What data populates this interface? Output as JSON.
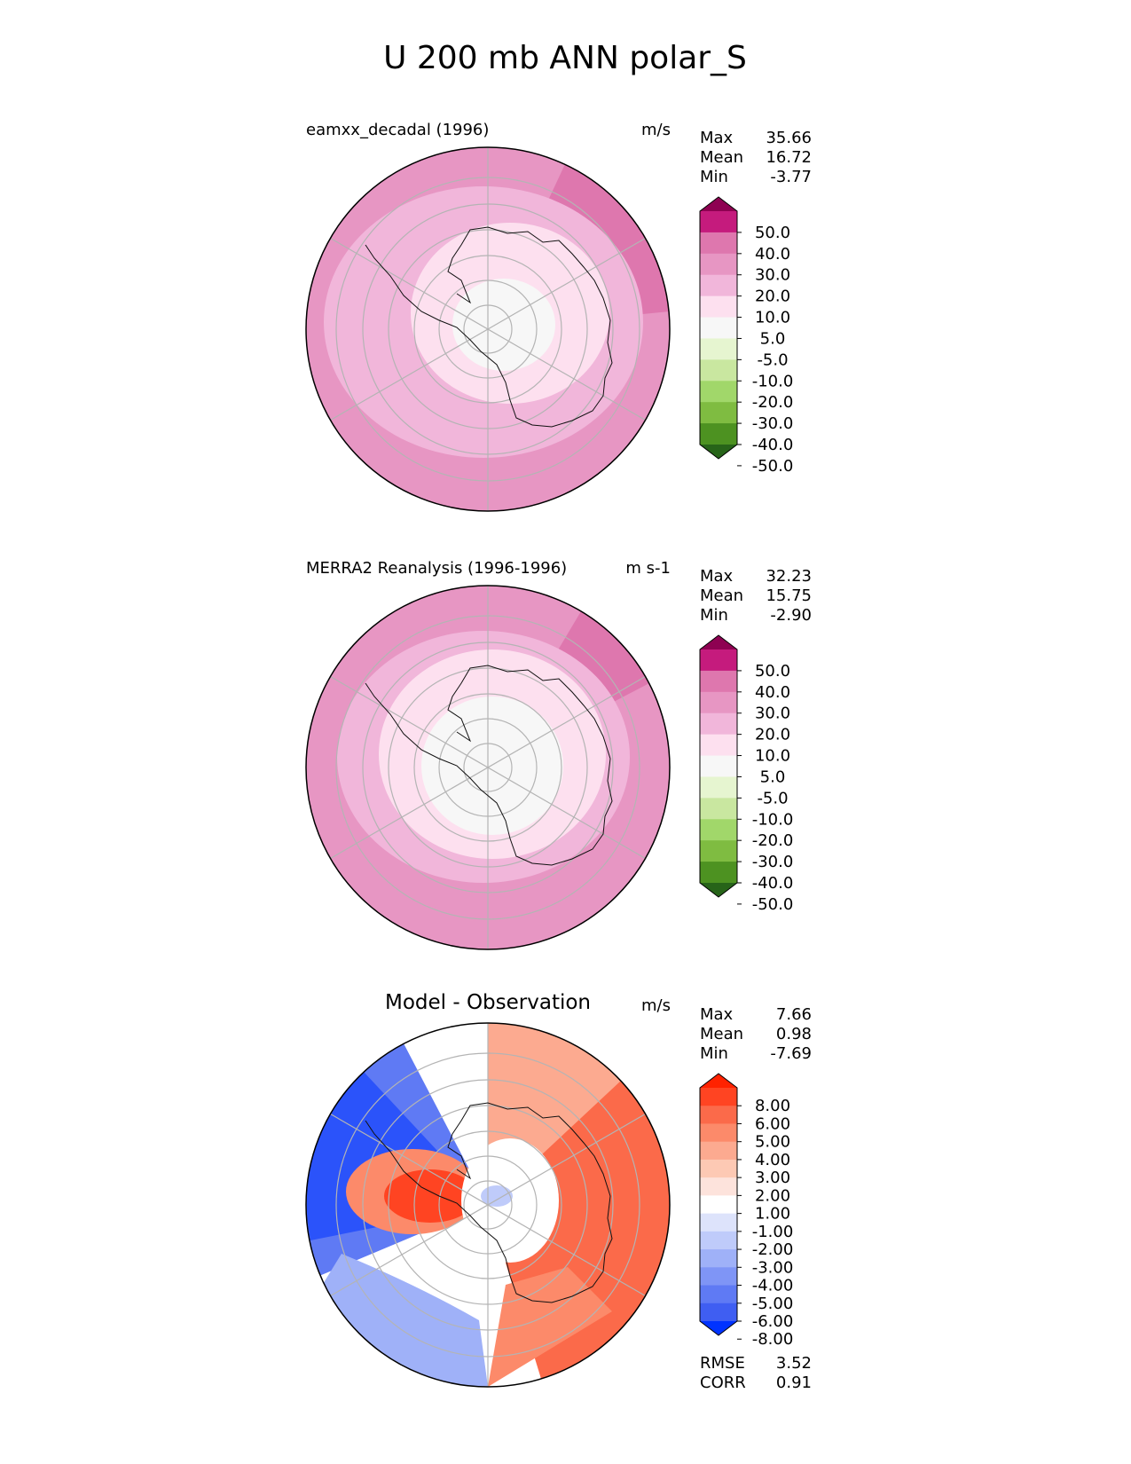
{
  "figure_title": "U 200 mb ANN polar_S",
  "panels": [
    {
      "title": "eamxx_decadal (1996)",
      "units": "m/s",
      "stats": [
        {
          "label": "Max",
          "value": "35.66"
        },
        {
          "label": "Mean",
          "value": "16.72"
        },
        {
          "label": "Min",
          "value": "-3.77"
        }
      ],
      "colorbar": {
        "labels": [
          "50.0",
          "40.0",
          "30.0",
          "20.0",
          "10.0",
          "5.0",
          "-5.0",
          "-10.0",
          "-20.0",
          "-30.0",
          "-40.0",
          "-50.0"
        ],
        "colors": [
          "#8e0152",
          "#c51b7d",
          "#de77ae",
          "#e796c3",
          "#f1b6da",
          "#fde0ef",
          "#f7f7f7",
          "#e6f5d0",
          "#c9e7a0",
          "#a1d76a",
          "#7fbc41",
          "#4d9221",
          "#276419"
        ]
      }
    },
    {
      "title": "MERRA2 Reanalysis (1996-1996)",
      "units": "m s-1",
      "stats": [
        {
          "label": "Max",
          "value": "32.23"
        },
        {
          "label": "Mean",
          "value": "15.75"
        },
        {
          "label": "Min",
          "value": "-2.90"
        }
      ],
      "colorbar": {
        "labels": [
          "50.0",
          "40.0",
          "30.0",
          "20.0",
          "10.0",
          "5.0",
          "-5.0",
          "-10.0",
          "-20.0",
          "-30.0",
          "-40.0",
          "-50.0"
        ],
        "colors": [
          "#8e0152",
          "#c51b7d",
          "#de77ae",
          "#e796c3",
          "#f1b6da",
          "#fde0ef",
          "#f7f7f7",
          "#e6f5d0",
          "#c9e7a0",
          "#a1d76a",
          "#7fbc41",
          "#4d9221",
          "#276419"
        ]
      }
    },
    {
      "title": "Model - Observation",
      "units": "m/s",
      "stats": [
        {
          "label": "Max",
          "value": "7.66"
        },
        {
          "label": "Mean",
          "value": "0.98"
        },
        {
          "label": "Min",
          "value": "-7.69"
        }
      ],
      "extra_stats": [
        {
          "label": "RMSE",
          "value": "3.52"
        },
        {
          "label": "CORR",
          "value": "0.91"
        }
      ],
      "colorbar": {
        "labels": [
          "8.00",
          "6.00",
          "5.00",
          "4.00",
          "3.00",
          "2.00",
          "1.00",
          "-1.00",
          "-2.00",
          "-3.00",
          "-4.00",
          "-5.00",
          "-6.00",
          "-8.00"
        ],
        "colors": [
          "#ff2200",
          "#ff4422",
          "#fb6a4a",
          "#fc8a6a",
          "#fcaa90",
          "#fdc9b4",
          "#fde3dc",
          "#ffffff",
          "#dde3fb",
          "#bfcbfa",
          "#9fb1f8",
          "#7f95f6",
          "#5f7af4",
          "#3f5ef2",
          "#0033ff"
        ]
      }
    }
  ],
  "chart_data": [
    {
      "type": "heatmap",
      "title": "eamxx_decadal (1996)",
      "projection": "south polar stereographic",
      "units": "m/s",
      "variable": "U 200 mb ANN",
      "levels": [
        -50,
        -40,
        -30,
        -20,
        -10,
        -5,
        5,
        10,
        20,
        30,
        40,
        50
      ],
      "stats": {
        "max": 35.66,
        "mean": 16.72,
        "min": -3.77
      },
      "zones": [
        {
          "region": "outer ring",
          "value": 25
        },
        {
          "region": "sector 30-70 lon, outer",
          "value": 35
        },
        {
          "region": "mid latitudes",
          "value": 15
        },
        {
          "region": "inner ring",
          "value": 7.5
        },
        {
          "region": "pole",
          "value": 0
        }
      ]
    },
    {
      "type": "heatmap",
      "title": "MERRA2 Reanalysis (1996-1996)",
      "projection": "south polar stereographic",
      "units": "m s-1",
      "variable": "U 200 mb ANN",
      "levels": [
        -50,
        -40,
        -30,
        -20,
        -10,
        -5,
        5,
        10,
        20,
        30,
        40,
        50
      ],
      "stats": {
        "max": 32.23,
        "mean": 15.75,
        "min": -2.9
      },
      "zones": [
        {
          "region": "outer ring",
          "value": 25
        },
        {
          "region": "sector 40-60 lon, outer",
          "value": 35
        },
        {
          "region": "mid latitudes",
          "value": 15
        },
        {
          "region": "inner ring",
          "value": 7.5
        },
        {
          "region": "pole",
          "value": 0
        }
      ]
    },
    {
      "type": "heatmap",
      "title": "Model - Observation",
      "projection": "south polar stereographic",
      "units": "m/s",
      "levels": [
        -8,
        -6,
        -5,
        -4,
        -3,
        -2,
        -1,
        1,
        2,
        3,
        4,
        5,
        6,
        8
      ],
      "stats": {
        "max": 7.66,
        "mean": 0.98,
        "min": -7.69,
        "rmse": 3.52,
        "corr": 0.91
      },
      "zones": [
        {
          "region": "western outer sector",
          "value": -7
        },
        {
          "region": "south-western band",
          "value": -4
        },
        {
          "region": "eastern outer sector",
          "value": 5
        },
        {
          "region": "Antarctic Peninsula",
          "value": 6
        },
        {
          "region": "near pole",
          "value": -1.5
        }
      ]
    }
  ]
}
